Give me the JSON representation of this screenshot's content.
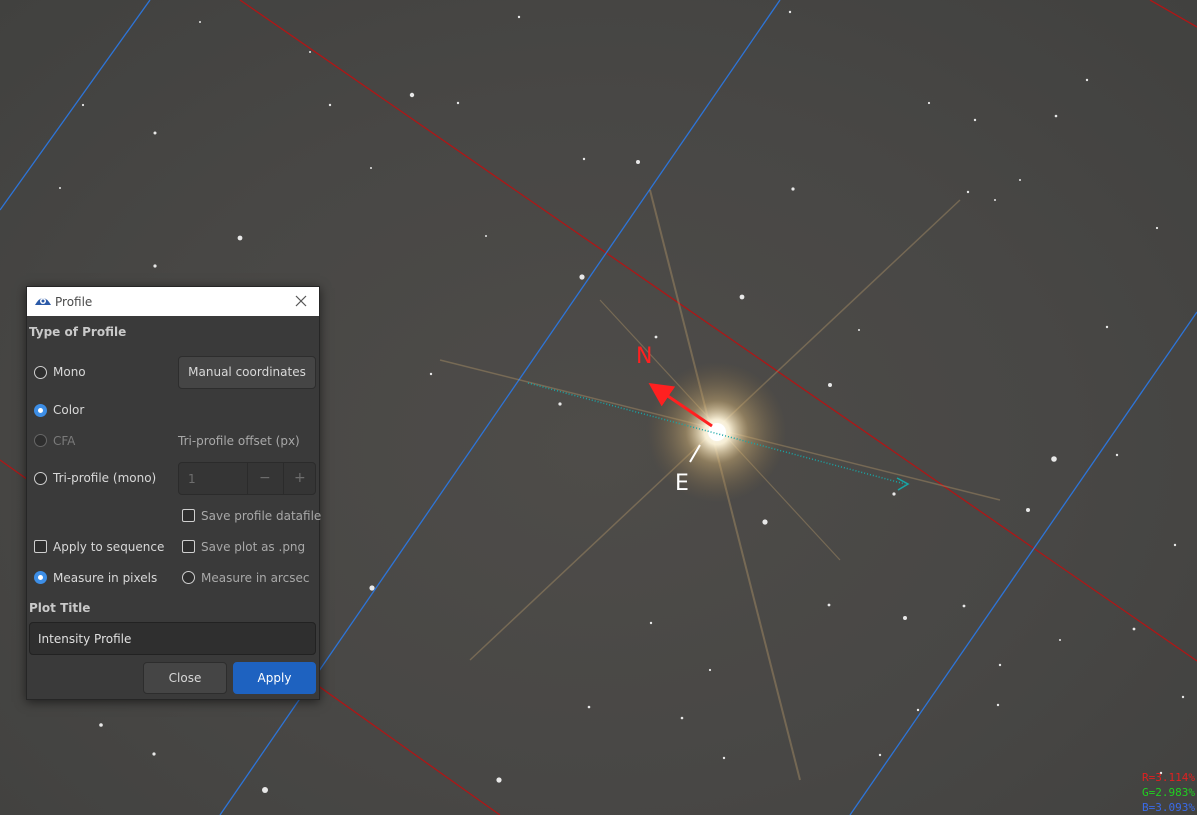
{
  "sky": {
    "background_color": "#494846",
    "grid_red": "#b01616",
    "grid_blue": "#2d74d8",
    "profile_line_color": "#17a6a6"
  },
  "compass": {
    "north": "N",
    "east": "E",
    "north_color": "#ff2020",
    "east_color": "#ffffff"
  },
  "rgb_readout": {
    "r": "R=3.114%",
    "g": "G=2.983%",
    "b": "B=3.093%",
    "r_color": "#e02020",
    "g_color": "#20d020",
    "b_color": "#3a6ae8"
  },
  "dialog": {
    "title": "Profile",
    "type_heading": "Type of Profile",
    "mono_label": "Mono",
    "color_label": "Color",
    "cfa_label": "CFA",
    "tri_label": "Tri-profile (mono)",
    "manual_coords_label": "Manual coordinates",
    "tri_offset_label": "Tri-profile offset (px)",
    "tri_offset_value": "1",
    "minus_symbol": "−",
    "plus_symbol": "+",
    "save_datafile_label": "Save profile datafile",
    "apply_sequence_label": "Apply to sequence",
    "save_png_label": "Save plot as .png",
    "measure_pixels_label": "Measure in pixels",
    "measure_arcsec_label": "Measure in arcsec",
    "plot_title_heading": "Plot Title",
    "plot_title_value": "Intensity Profile",
    "close_label": "Close",
    "apply_label": "Apply",
    "accent_color": "#1e62c0"
  }
}
